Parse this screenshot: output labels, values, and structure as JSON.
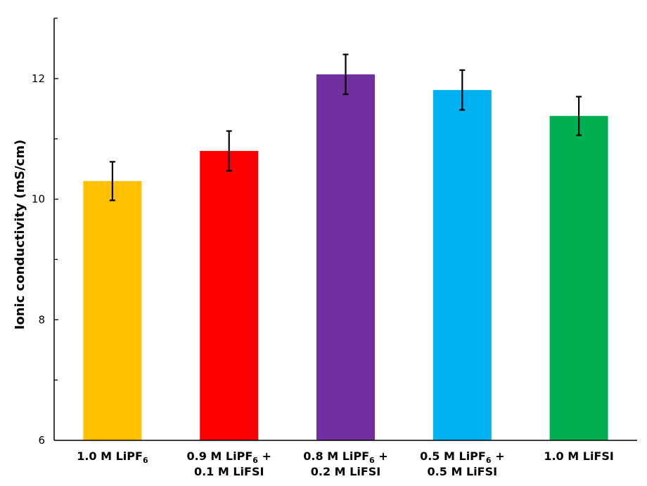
{
  "chart_data": {
    "type": "bar",
    "ylabel": "Ionic conductivity (mS/cm)",
    "xlabel": "",
    "ylim": [
      6,
      13
    ],
    "yticks": [
      6,
      8,
      10,
      12
    ],
    "grid": false,
    "categories": [
      {
        "id": "c1",
        "lines": [
          [
            {
              "t": "1.0 M LiPF"
            },
            {
              "t": "6",
              "sub": true
            }
          ]
        ]
      },
      {
        "id": "c2",
        "lines": [
          [
            {
              "t": "0.9 M LiPF"
            },
            {
              "t": "6",
              "sub": true
            },
            {
              "t": " +"
            }
          ],
          [
            {
              "t": "0.1 M LiFSI"
            }
          ]
        ]
      },
      {
        "id": "c3",
        "lines": [
          [
            {
              "t": "0.8 M LiPF"
            },
            {
              "t": "6",
              "sub": true
            },
            {
              "t": " +"
            }
          ],
          [
            {
              "t": "0.2 M LiFSI"
            }
          ]
        ]
      },
      {
        "id": "c4",
        "lines": [
          [
            {
              "t": "0.5 M LiPF"
            },
            {
              "t": "6",
              "sub": true
            },
            {
              "t": " +"
            }
          ],
          [
            {
              "t": "0.5 M LiFSI"
            }
          ]
        ]
      },
      {
        "id": "c5",
        "lines": [
          [
            {
              "t": "1.0 M LiFSI"
            }
          ]
        ]
      }
    ],
    "values": [
      10.3,
      10.8,
      12.07,
      11.81,
      11.38
    ],
    "errors": [
      0.32,
      0.33,
      0.33,
      0.33,
      0.32
    ],
    "colors": [
      "#FFC000",
      "#FF0000",
      "#7030A0",
      "#00B0F0",
      "#00B050"
    ]
  }
}
